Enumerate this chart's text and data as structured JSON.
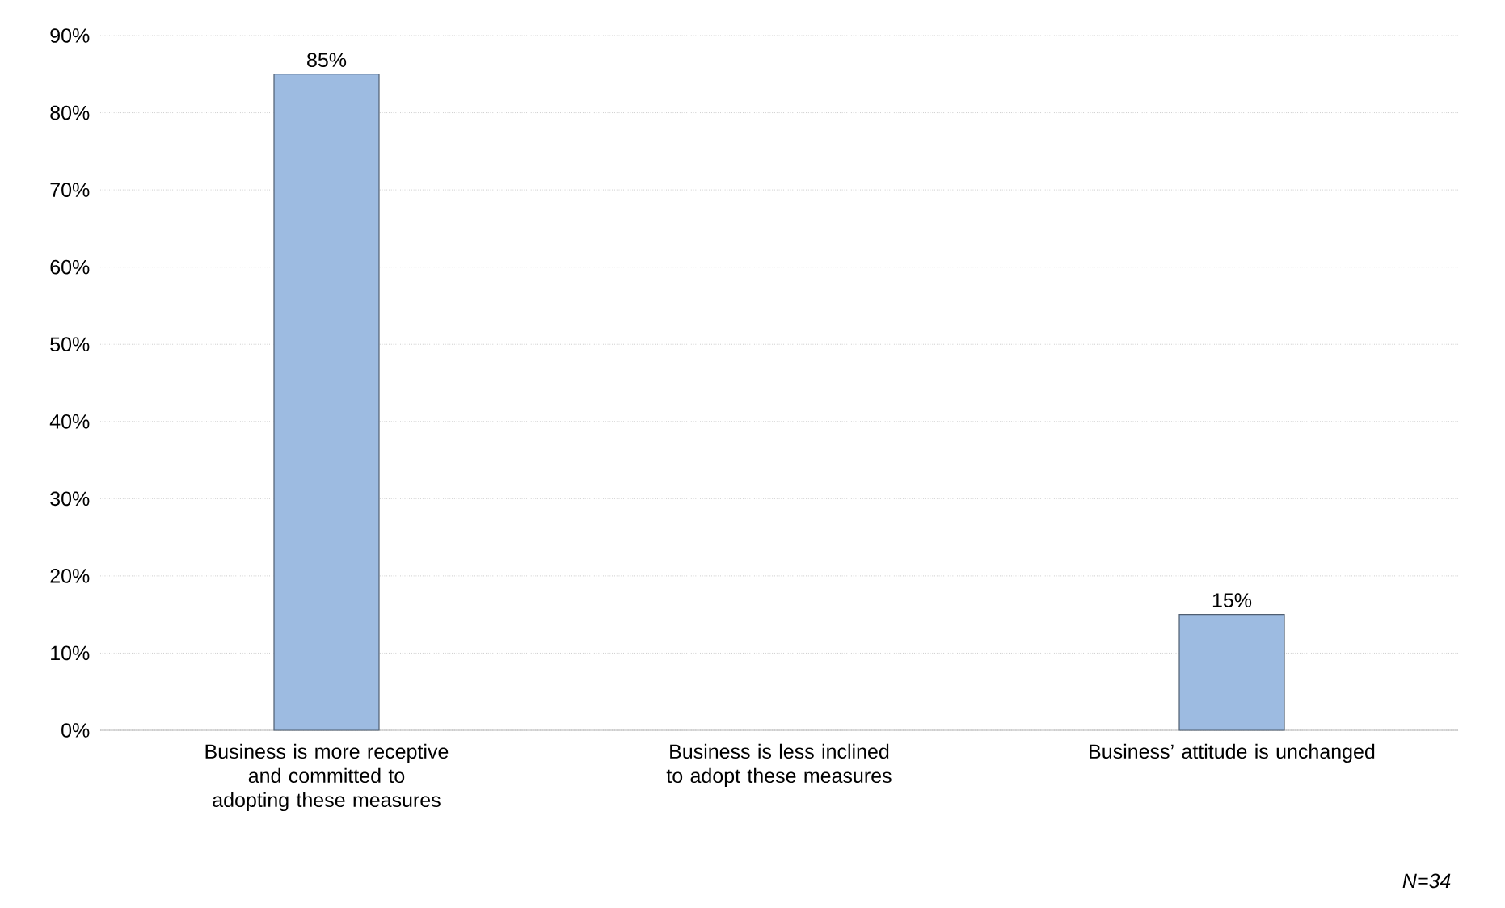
{
  "chart_data": {
    "type": "bar",
    "categories": [
      "Business is more receptive and committed to adopting these measures",
      "Business is less inclined to adopt these measures",
      "Business’ attitude is unchanged"
    ],
    "values": [
      85,
      null,
      15
    ],
    "value_labels": [
      "85%",
      null,
      "15%"
    ],
    "color": "#9dbbe1",
    "ylim": [
      0,
      90
    ],
    "yticks": [
      {
        "value": 0,
        "label": "0%"
      },
      {
        "value": 10,
        "label": "10%"
      },
      {
        "value": 20,
        "label": "20%"
      },
      {
        "value": 30,
        "label": "30%"
      },
      {
        "value": 40,
        "label": "40%"
      },
      {
        "value": 50,
        "label": "50%"
      },
      {
        "value": 60,
        "label": "60%"
      },
      {
        "value": 70,
        "label": "70%"
      },
      {
        "value": 80,
        "label": "80%"
      },
      {
        "value": 90,
        "label": "90%"
      }
    ],
    "grid": "y",
    "annotations": [
      "N=34"
    ]
  }
}
